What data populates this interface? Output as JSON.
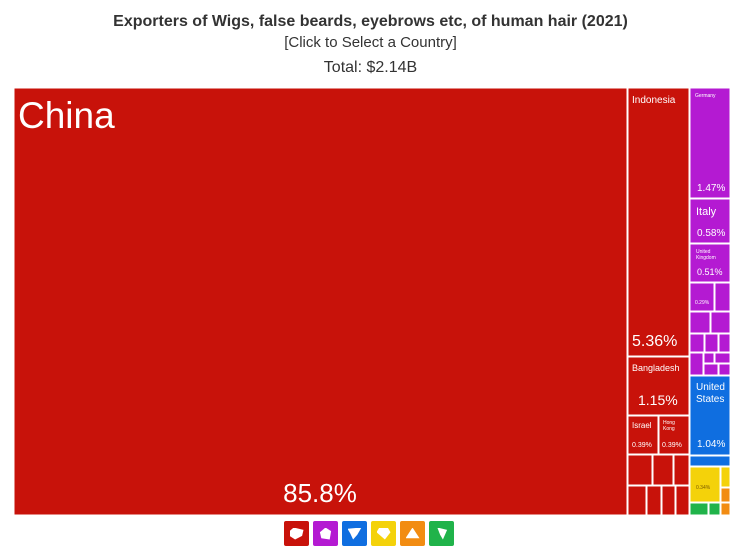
{
  "header": {
    "title": "Exporters of Wigs, false beards, eyebrows etc, of human hair (2021)",
    "subtitle": "[Click to Select a Country]",
    "total": "Total: $2.14B"
  },
  "chart_data": {
    "type": "treemap",
    "title": "Exporters of Wigs, false beards, eyebrows etc, of human hair (2021)",
    "total": "$2.14B",
    "items": [
      {
        "name": "China",
        "share": 85.8,
        "region": "asia"
      },
      {
        "name": "Indonesia",
        "share": 5.36,
        "region": "asia"
      },
      {
        "name": "Bangladesh",
        "share": 1.15,
        "region": "asia"
      },
      {
        "name": "Israel",
        "share": 0.39,
        "region": "asia"
      },
      {
        "name": "Hong Kong",
        "share": 0.39,
        "region": "asia"
      },
      {
        "name": "Germany",
        "share": 1.47,
        "region": "europe"
      },
      {
        "name": "Italy",
        "share": 0.58,
        "region": "europe"
      },
      {
        "name": "United Kingdom",
        "share": 0.51,
        "region": "europe"
      },
      {
        "name": "",
        "share": 0.29,
        "region": "europe"
      },
      {
        "name": "United States",
        "share": 1.04,
        "region": "north_america"
      },
      {
        "name": "",
        "share": 0.34,
        "region": "africa"
      }
    ],
    "labels": {
      "china_name": "China",
      "china_pct": "85.8%",
      "indonesia_name": "Indonesia",
      "indonesia_pct": "5.36%",
      "bangladesh_name": "Bangladesh",
      "bangladesh_pct": "1.15%",
      "israel_name": "Israel",
      "israel_pct": "0.39%",
      "hk_name_1": "Hong",
      "hk_name_2": "Kong",
      "hk_pct": "0.39%",
      "germany_name": "Germany",
      "germany_pct": "1.47%",
      "italy_name": "Italy",
      "italy_pct": "0.58%",
      "uk_name_1": "United",
      "uk_name_2": "Kingdom",
      "uk_pct": "0.51%",
      "eu_small_pct": "0.29%",
      "us_name_1": "United",
      "us_name_2": "States",
      "us_pct": "1.04%",
      "africa_pct": "0.34%"
    },
    "colors": {
      "asia": "#c8120a",
      "europe": "#b41ad2",
      "north_america": "#0f6ee0",
      "south_america": "#20b34a",
      "africa": "#f4d20a",
      "oceania": "#f28c12"
    }
  },
  "region_nav": [
    {
      "name": "asia",
      "color": "#c8120a"
    },
    {
      "name": "europe",
      "color": "#b41ad2"
    },
    {
      "name": "north_america",
      "color": "#0f6ee0"
    },
    {
      "name": "africa",
      "color": "#f4d20a"
    },
    {
      "name": "oceania",
      "color": "#f28c12"
    },
    {
      "name": "south_america",
      "color": "#20b34a"
    }
  ]
}
